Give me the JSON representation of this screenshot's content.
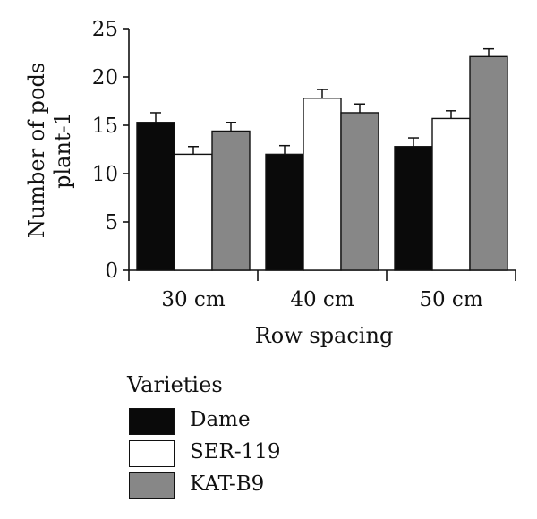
{
  "chart_data": {
    "type": "bar",
    "categories": [
      "30 cm",
      "40 cm",
      "50 cm"
    ],
    "series": [
      {
        "name": "Dame",
        "values": [
          15.3,
          12.0,
          12.8
        ],
        "errors": [
          1.0,
          0.9,
          0.9
        ],
        "color": "#0a0a0a"
      },
      {
        "name": "SER-119",
        "values": [
          12.0,
          17.8,
          15.7
        ],
        "errors": [
          0.8,
          0.9,
          0.8
        ],
        "color": "#ffffff"
      },
      {
        "name": "KAT-B9",
        "values": [
          14.4,
          16.3,
          22.1
        ],
        "errors": [
          0.9,
          0.9,
          0.8
        ],
        "color": "#878787"
      }
    ],
    "xlabel": "Row spacing",
    "ylabel": "Number of pods plant-1",
    "ylabel_lines": [
      "Number of pods",
      "plant-1"
    ],
    "ylim": [
      0,
      25
    ],
    "yticks": [
      0,
      5,
      10,
      15,
      20,
      25
    ],
    "legend_title": "Varieties",
    "legend_placement": "bottom",
    "grid": false
  }
}
